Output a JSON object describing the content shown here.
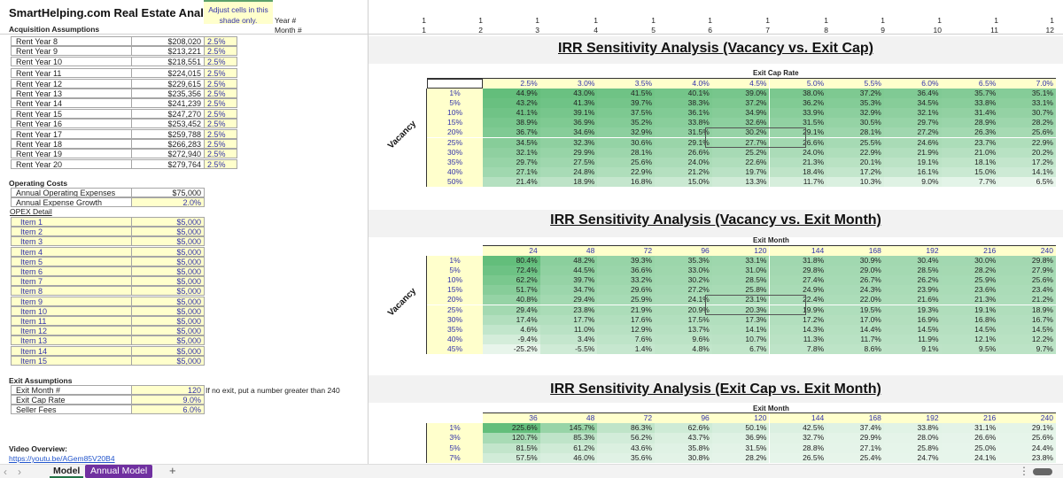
{
  "header": {
    "title": "SmartHelping.com Real Estate Analysis",
    "note": "Adjust cells in this shade only.",
    "year_label": "Year #",
    "month_label": "Month #",
    "years": [
      "1",
      "1",
      "1",
      "1",
      "1",
      "1",
      "1",
      "1",
      "1",
      "1",
      "1",
      "1"
    ],
    "months": [
      "1",
      "2",
      "3",
      "4",
      "5",
      "6",
      "7",
      "8",
      "9",
      "10",
      "11",
      "12"
    ]
  },
  "acquisition": {
    "heading": "Acquisition Assumptions",
    "rents": [
      {
        "label": "Rent Year 8",
        "value": "$208,020",
        "growth": "2.5%"
      },
      {
        "label": "Rent Year 9",
        "value": "$213,221",
        "growth": "2.5%"
      },
      {
        "label": "Rent Year 10",
        "value": "$218,551",
        "growth": "2.5%"
      },
      {
        "label": "Rent Year 11",
        "value": "$224,015",
        "growth": "2.5%"
      },
      {
        "label": "Rent Year 12",
        "value": "$229,615",
        "growth": "2.5%"
      },
      {
        "label": "Rent Year 13",
        "value": "$235,356",
        "growth": "2.5%"
      },
      {
        "label": "Rent Year 14",
        "value": "$241,239",
        "growth": "2.5%"
      },
      {
        "label": "Rent Year 15",
        "value": "$247,270",
        "growth": "2.5%"
      },
      {
        "label": "Rent Year 16",
        "value": "$253,452",
        "growth": "2.5%"
      },
      {
        "label": "Rent Year 17",
        "value": "$259,788",
        "growth": "2.5%"
      },
      {
        "label": "Rent Year 18",
        "value": "$266,283",
        "growth": "2.5%"
      },
      {
        "label": "Rent Year 19",
        "value": "$272,940",
        "growth": "2.5%"
      },
      {
        "label": "Rent Year 20",
        "value": "$279,764",
        "growth": "2.5%"
      }
    ]
  },
  "operating": {
    "heading": "Operating Costs",
    "rows": [
      {
        "label": "Annual Operating Expenses",
        "value": "$75,000",
        "input": false
      },
      {
        "label": "Annual Expense Growth",
        "value": "2.0%",
        "input": true
      }
    ],
    "opex_heading": "OPEX Detail",
    "items": [
      {
        "label": "Item 1",
        "value": "$5,000"
      },
      {
        "label": "Item 2",
        "value": "$5,000"
      },
      {
        "label": "Item 3",
        "value": "$5,000"
      },
      {
        "label": "Item 4",
        "value": "$5,000"
      },
      {
        "label": "Item 5",
        "value": "$5,000"
      },
      {
        "label": "Item 6",
        "value": "$5,000"
      },
      {
        "label": "Item 7",
        "value": "$5,000"
      },
      {
        "label": "Item 8",
        "value": "$5,000"
      },
      {
        "label": "Item 9",
        "value": "$5,000"
      },
      {
        "label": "Item 10",
        "value": "$5,000"
      },
      {
        "label": "Item 11",
        "value": "$5,000"
      },
      {
        "label": "Item 12",
        "value": "$5,000"
      },
      {
        "label": "Item 13",
        "value": "$5,000"
      },
      {
        "label": "Item 14",
        "value": "$5,000"
      },
      {
        "label": "Item 15",
        "value": "$5,000"
      }
    ]
  },
  "exit": {
    "heading": "Exit Assumptions",
    "rows": [
      {
        "label": "Exit Month #",
        "value": "120"
      },
      {
        "label": "Exit Cap Rate",
        "value": "9.0%"
      },
      {
        "label": "Seller Fees",
        "value": "6.0%"
      }
    ],
    "note": "If no exit, put a number greater than 240"
  },
  "video": {
    "heading": "Video Overview:",
    "link": "https://youtu.be/AGem85V20B4"
  },
  "colors": {
    "heat_max": "#63be7b",
    "heat_min": "#ffffff",
    "input_shade": "#ffffcc",
    "tab_purple": "#7030a0"
  },
  "tables": [
    {
      "title": "IRR Sensitivity Analysis (Vacancy vs. Exit Cap)",
      "col_axis": "Exit Cap Rate",
      "row_axis": "Vacancy",
      "cols": [
        "2.5%",
        "3.0%",
        "3.5%",
        "4.0%",
        "4.5%",
        "5.0%",
        "5.5%",
        "6.0%",
        "6.5%",
        "7.0%"
      ],
      "rows": [
        "1%",
        "5%",
        "10%",
        "15%",
        "20%",
        "25%",
        "30%",
        "35%",
        "40%",
        "50%"
      ],
      "values": [
        [
          "44.9%",
          "43.0%",
          "41.5%",
          "40.1%",
          "39.0%",
          "38.0%",
          "37.2%",
          "36.4%",
          "35.7%",
          "35.1%"
        ],
        [
          "43.2%",
          "41.3%",
          "39.7%",
          "38.3%",
          "37.2%",
          "36.2%",
          "35.3%",
          "34.5%",
          "33.8%",
          "33.1%"
        ],
        [
          "41.1%",
          "39.1%",
          "37.5%",
          "36.1%",
          "34.9%",
          "33.9%",
          "32.9%",
          "32.1%",
          "31.4%",
          "30.7%"
        ],
        [
          "38.9%",
          "36.9%",
          "35.2%",
          "33.8%",
          "32.6%",
          "31.5%",
          "30.5%",
          "29.7%",
          "28.9%",
          "28.2%"
        ],
        [
          "36.7%",
          "34.6%",
          "32.9%",
          "31.5%",
          "30.2%",
          "29.1%",
          "28.1%",
          "27.2%",
          "26.3%",
          "25.6%"
        ],
        [
          "34.5%",
          "32.3%",
          "30.6%",
          "29.1%",
          "27.7%",
          "26.6%",
          "25.5%",
          "24.6%",
          "23.7%",
          "22.9%"
        ],
        [
          "32.1%",
          "29.9%",
          "28.1%",
          "26.6%",
          "25.2%",
          "24.0%",
          "22.9%",
          "21.9%",
          "21.0%",
          "20.2%"
        ],
        [
          "29.7%",
          "27.5%",
          "25.6%",
          "24.0%",
          "22.6%",
          "21.3%",
          "20.1%",
          "19.1%",
          "18.1%",
          "17.2%"
        ],
        [
          "27.1%",
          "24.8%",
          "22.9%",
          "21.2%",
          "19.7%",
          "18.4%",
          "17.2%",
          "16.1%",
          "15.0%",
          "14.1%"
        ],
        [
          "21.4%",
          "18.9%",
          "16.8%",
          "15.0%",
          "13.3%",
          "11.7%",
          "10.3%",
          "9.0%",
          "7.7%",
          "6.5%"
        ]
      ]
    },
    {
      "title": "IRR Sensitivity Analysis (Vacancy vs. Exit Month)",
      "col_axis": "Exit Month",
      "row_axis": "Vacancy",
      "cols": [
        "24",
        "48",
        "72",
        "96",
        "120",
        "144",
        "168",
        "192",
        "216",
        "240"
      ],
      "rows": [
        "1%",
        "5%",
        "10%",
        "15%",
        "20%",
        "25%",
        "30%",
        "35%",
        "40%",
        "45%"
      ],
      "values": [
        [
          "80.4%",
          "48.2%",
          "39.3%",
          "35.3%",
          "33.1%",
          "31.8%",
          "30.9%",
          "30.4%",
          "30.0%",
          "29.8%"
        ],
        [
          "72.4%",
          "44.5%",
          "36.6%",
          "33.0%",
          "31.0%",
          "29.8%",
          "29.0%",
          "28.5%",
          "28.2%",
          "27.9%"
        ],
        [
          "62.2%",
          "39.7%",
          "33.2%",
          "30.2%",
          "28.5%",
          "27.4%",
          "26.7%",
          "26.2%",
          "25.9%",
          "25.6%"
        ],
        [
          "51.7%",
          "34.7%",
          "29.6%",
          "27.2%",
          "25.8%",
          "24.9%",
          "24.3%",
          "23.9%",
          "23.6%",
          "23.4%"
        ],
        [
          "40.8%",
          "29.4%",
          "25.9%",
          "24.1%",
          "23.1%",
          "22.4%",
          "22.0%",
          "21.6%",
          "21.3%",
          "21.2%"
        ],
        [
          "29.4%",
          "23.8%",
          "21.9%",
          "20.9%",
          "20.3%",
          "19.9%",
          "19.5%",
          "19.3%",
          "19.1%",
          "18.9%"
        ],
        [
          "17.4%",
          "17.7%",
          "17.6%",
          "17.5%",
          "17.3%",
          "17.2%",
          "17.0%",
          "16.9%",
          "16.8%",
          "16.7%"
        ],
        [
          "4.6%",
          "11.0%",
          "12.9%",
          "13.7%",
          "14.1%",
          "14.3%",
          "14.4%",
          "14.5%",
          "14.5%",
          "14.5%"
        ],
        [
          "-9.4%",
          "3.4%",
          "7.6%",
          "9.6%",
          "10.7%",
          "11.3%",
          "11.7%",
          "11.9%",
          "12.1%",
          "12.2%"
        ],
        [
          "-25.2%",
          "-5.5%",
          "1.4%",
          "4.8%",
          "6.7%",
          "7.8%",
          "8.6%",
          "9.1%",
          "9.5%",
          "9.7%"
        ]
      ]
    },
    {
      "title": "IRR Sensitivity Analysis (Exit Cap vs. Exit Month)",
      "col_axis": "Exit Month",
      "cols": [
        "36",
        "48",
        "72",
        "96",
        "120",
        "144",
        "168",
        "192",
        "216",
        "240"
      ],
      "rows": [
        "1%",
        "3%",
        "5%",
        "7%"
      ],
      "values": [
        [
          "225.6%",
          "145.7%",
          "86.3%",
          "62.6%",
          "50.1%",
          "42.5%",
          "37.4%",
          "33.8%",
          "31.1%",
          "29.1%"
        ],
        [
          "120.7%",
          "85.3%",
          "56.2%",
          "43.7%",
          "36.9%",
          "32.7%",
          "29.9%",
          "28.0%",
          "26.6%",
          "25.6%"
        ],
        [
          "81.5%",
          "61.2%",
          "43.6%",
          "35.8%",
          "31.5%",
          "28.8%",
          "27.1%",
          "25.8%",
          "25.0%",
          "24.4%"
        ],
        [
          "57.5%",
          "46.0%",
          "35.6%",
          "30.8%",
          "28.2%",
          "26.5%",
          "25.4%",
          "24.7%",
          "24.1%",
          "23.8%"
        ]
      ]
    }
  ],
  "tabs": {
    "items": [
      {
        "label": "Model",
        "active": true
      },
      {
        "label": "Annual Model",
        "active": false
      }
    ],
    "add": "+",
    "prev": "‹",
    "next": "›",
    "more": "⋮"
  }
}
